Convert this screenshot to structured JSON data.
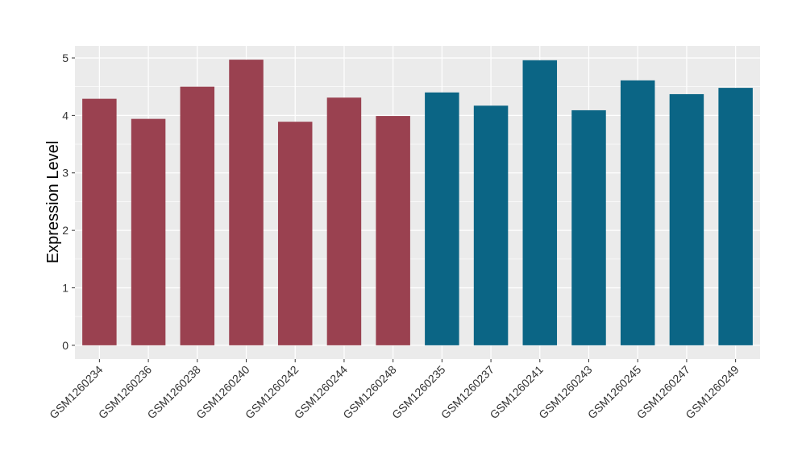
{
  "chart_data": {
    "type": "bar",
    "title": "",
    "xlabel": "",
    "ylabel": "Expression Level",
    "ylim": [
      -0.24,
      5.21
    ],
    "yticks": [
      0,
      1,
      2,
      3,
      4,
      5
    ],
    "grid": true,
    "legend": "none",
    "categories": [
      "GSM1260234",
      "GSM1260236",
      "GSM1260238",
      "GSM1260240",
      "GSM1260242",
      "GSM1260244",
      "GSM1260248",
      "GSM1260235",
      "GSM1260237",
      "GSM1260241",
      "GSM1260243",
      "GSM1260245",
      "GSM1260247",
      "GSM1260249"
    ],
    "values": [
      4.29,
      3.94,
      4.5,
      4.97,
      3.89,
      4.31,
      3.99,
      4.4,
      4.17,
      4.96,
      4.09,
      4.61,
      4.37,
      4.48
    ],
    "groups": [
      0,
      0,
      0,
      0,
      0,
      0,
      0,
      1,
      1,
      1,
      1,
      1,
      1,
      1
    ],
    "colors": [
      "#9A4150",
      "#0B6585"
    ],
    "panel_color": "#EBEBEB",
    "grid_color": "#FFFFFF"
  }
}
